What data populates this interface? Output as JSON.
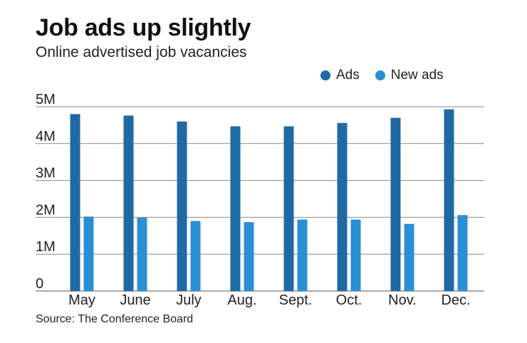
{
  "header": {
    "title": "Job ads up slightly",
    "subtitle": "Online advertised job vacancies"
  },
  "legend": [
    {
      "label": "Ads",
      "color": "#1f6aa5"
    },
    {
      "label": "New ads",
      "color": "#2b8fd6"
    }
  ],
  "source": "Source: The Conference Board",
  "chart_data": {
    "type": "bar",
    "categories": [
      "May",
      "June",
      "July",
      "Aug.",
      "Sept.",
      "Oct.",
      "Nov.",
      "Dec."
    ],
    "series": [
      {
        "name": "Ads",
        "color": "#1f6aa5",
        "values": [
          4.8,
          4.76,
          4.6,
          4.47,
          4.47,
          4.56,
          4.7,
          4.93
        ]
      },
      {
        "name": "New ads",
        "color": "#2b8fd6",
        "values": [
          2.02,
          1.99,
          1.9,
          1.87,
          1.94,
          1.94,
          1.82,
          2.06
        ]
      }
    ],
    "y_ticks": [
      "0",
      "1M",
      "2M",
      "3M",
      "4M",
      "5M"
    ],
    "ylim": [
      0,
      5
    ],
    "grid": true
  }
}
